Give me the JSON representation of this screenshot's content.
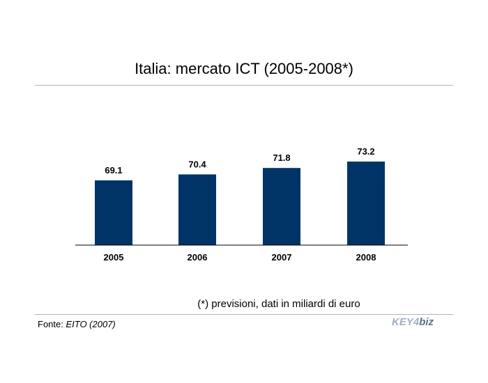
{
  "header": {
    "title": "Italia: mercato ICT (2005-2008*)"
  },
  "chart_data": {
    "type": "bar",
    "title": "Italia: mercato ICT (2005-2008*)",
    "categories": [
      "2005",
      "2006",
      "2007",
      "2008"
    ],
    "values": [
      69.1,
      70.4,
      71.8,
      73.2
    ],
    "value_labels": [
      "69.1",
      "70.4",
      "71.8",
      "73.2"
    ],
    "xlabel": "",
    "ylabel": "",
    "ylim": [
      0,
      73.2
    ],
    "grid": false,
    "legend": "none",
    "bar_color": "#003366"
  },
  "footer": {
    "note": "(*) previsioni, dati in miliardi di euro",
    "source_prefix": "Fonte: ",
    "source_name": "EITO (2007)",
    "logo_left": "KEY4",
    "logo_right": "biz"
  },
  "colors": {
    "bar": "#003366",
    "rule": "#b3b3b3",
    "logo_light": "#9fb0c2",
    "logo_dark": "#5c7188"
  }
}
